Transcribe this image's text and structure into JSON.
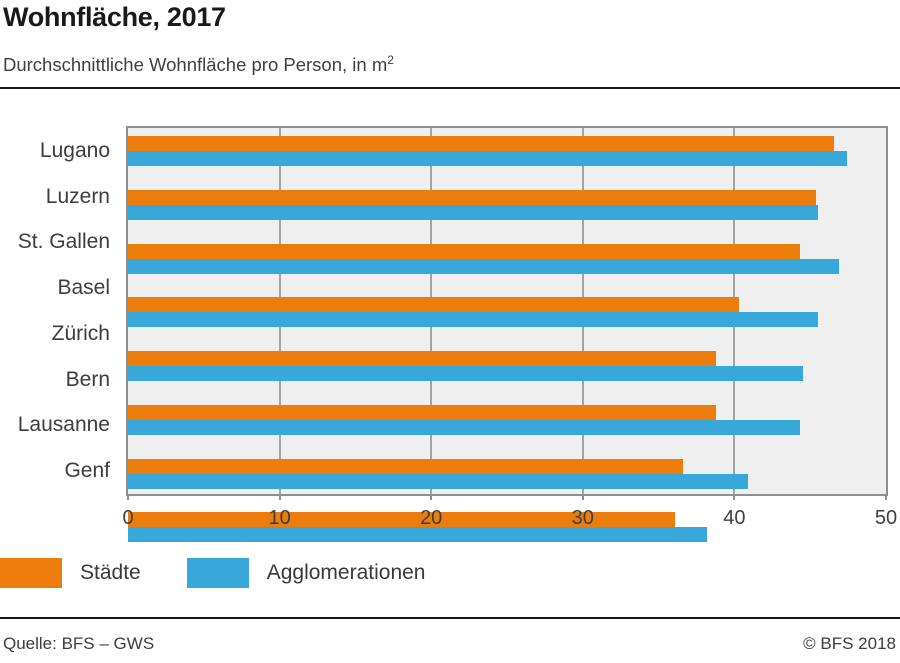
{
  "header": {
    "title": "Wohnfläche, 2017",
    "subtitle_main": "Durchschnittliche Wohnfläche pro Person, in m",
    "subtitle_sup": "2"
  },
  "chart_data": {
    "type": "bar",
    "orientation": "horizontal",
    "categories": [
      "Lugano",
      "Luzern",
      "St. Gallen",
      "Basel",
      "Zürich",
      "Bern",
      "Lausanne",
      "Genf"
    ],
    "series": [
      {
        "name": "Städte",
        "color": "#ec7d0c",
        "values": [
          46.6,
          45.4,
          44.3,
          40.3,
          38.8,
          38.8,
          36.6,
          36.1
        ]
      },
      {
        "name": "Agglomerationen",
        "color": "#38a8db",
        "values": [
          47.4,
          45.5,
          46.9,
          45.5,
          44.5,
          44.3,
          40.9,
          38.2
        ]
      }
    ],
    "xlim": [
      0,
      50
    ],
    "x_ticks": [
      0,
      10,
      20,
      30,
      40,
      50
    ],
    "grid": "vertical-gridlines-at-10-20-30-40",
    "plot_background": "#efefef",
    "legend_position": "bottom-left"
  },
  "legend": {
    "items": [
      {
        "label": "Städte",
        "color": "#ec7d0c"
      },
      {
        "label": "Agglomerationen",
        "color": "#38a8db"
      }
    ]
  },
  "footer": {
    "source": "Quelle: BFS – GWS",
    "copyright": "© BFS 2018"
  }
}
